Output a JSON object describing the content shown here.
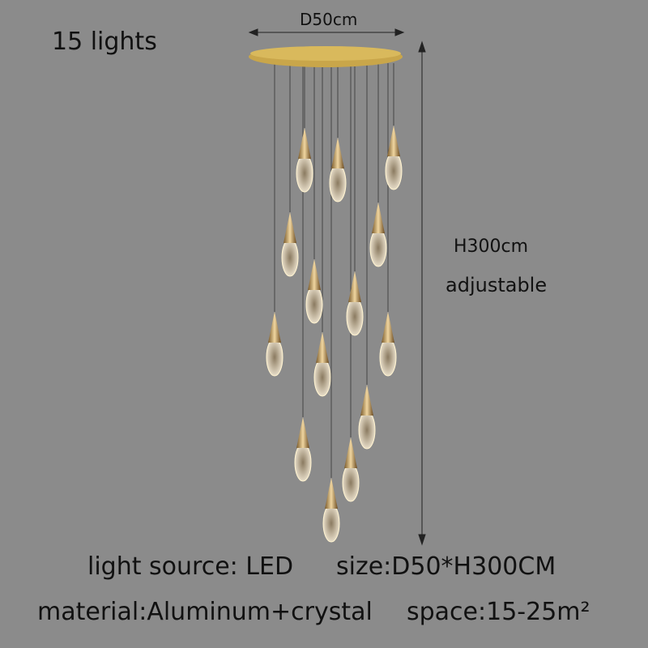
{
  "product": {
    "title": "15 lights",
    "diameter_label": "D50cm",
    "height_label": "H300cm",
    "height_note": "adjustable",
    "light_source": "light source:  LED",
    "size": "size:D50*H300CM",
    "material": "material:Aluminum+crystal",
    "space": "space:15-25m²"
  },
  "colors": {
    "background": "#8b8b8b",
    "gold": "#c9a64a",
    "text": "#111111"
  }
}
